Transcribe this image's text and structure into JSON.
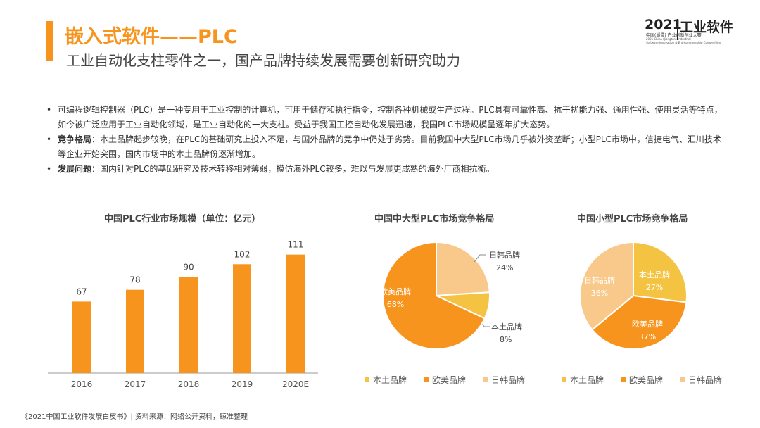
{
  "header": {
    "title": "嵌入式软件——PLC",
    "subtitle": "工业自动化支柱零件之一，国产品牌持续发展需要创新研究助力"
  },
  "logo": {
    "year": "2021",
    "name": "工业软件",
    "line1": "中国(湖潭) 产业创新创业大赛",
    "line2": "2021 China (Jiangtan) Industrial",
    "line3": "Software Innovation & Entrepreneurship Competition"
  },
  "bullets": [
    {
      "dot": "•",
      "label": "",
      "text": "可编程逻辑控制器（PLC）是一种专用于工业控制的计算机，可用于储存和执行指令，控制各种机械或生产过程。PLC具有可靠性高、抗干扰能力强、通用性强、使用灵活等特点，如今被广泛应用于工业自动化领域，是工业自动化的一大支柱。受益于我国工控自动化发展迅速，我国PLC市场规模呈逐年扩大态势。"
    },
    {
      "dot": "•",
      "label": "竞争格局",
      "text": "：本土品牌起步较晚，在PLC的基础研究上投入不足，与国外品牌的竞争中仍处于劣势。目前我国中大型PLC市场几乎被外资垄断；小型PLC市场中，信捷电气、汇川技术等企业开始突围，国内市场中的本土品牌份逐渐增加。"
    },
    {
      "dot": "•",
      "label": "发展问题",
      "text": "：国内针对PLC的基础研究及技术转移相对薄弱，模仿海外PLC较多，难以与发展更成熟的海外厂商相抗衡。"
    }
  ],
  "colors": {
    "bar": "#F7941D",
    "domestic": "#F5C342",
    "western": "#F7941D",
    "jpkr": "#F8C98A",
    "accent": "#F7941D"
  },
  "chart_data": [
    {
      "type": "bar",
      "title": "中国PLC行业市场规模（单位：亿元）",
      "categories": [
        "2016",
        "2017",
        "2018",
        "2019",
        "2020E"
      ],
      "values": [
        67,
        78,
        90,
        102,
        111
      ],
      "value_labels": [
        "67",
        "78",
        "90",
        "102",
        "111"
      ],
      "ylim": [
        0,
        120
      ],
      "grid": false
    },
    {
      "type": "pie",
      "title": "中国中大型PLC市场竞争格局",
      "slices": [
        {
          "name": "日韩品牌",
          "value": 24,
          "label": "24%"
        },
        {
          "name": "本土品牌",
          "value": 8,
          "label": "8%"
        },
        {
          "name": "欧美品牌",
          "value": 68,
          "label": "68%"
        }
      ],
      "legend": [
        "本土品牌",
        "欧美品牌",
        "日韩品牌"
      ],
      "legend_position": "bottom"
    },
    {
      "type": "pie",
      "title": "中国小型PLC市场竞争格局",
      "slices": [
        {
          "name": "本土品牌",
          "value": 27,
          "label": "27%"
        },
        {
          "name": "欧美品牌",
          "value": 37,
          "label": "37%"
        },
        {
          "name": "日韩品牌",
          "value": 36,
          "label": "36%"
        }
      ],
      "legend": [
        "本土品牌",
        "欧美品牌",
        "日韩品牌"
      ],
      "legend_position": "bottom"
    }
  ],
  "footnote": "《2021中国工业软件发展白皮书》| 资料来源：网络公开资料，鲸准整理"
}
